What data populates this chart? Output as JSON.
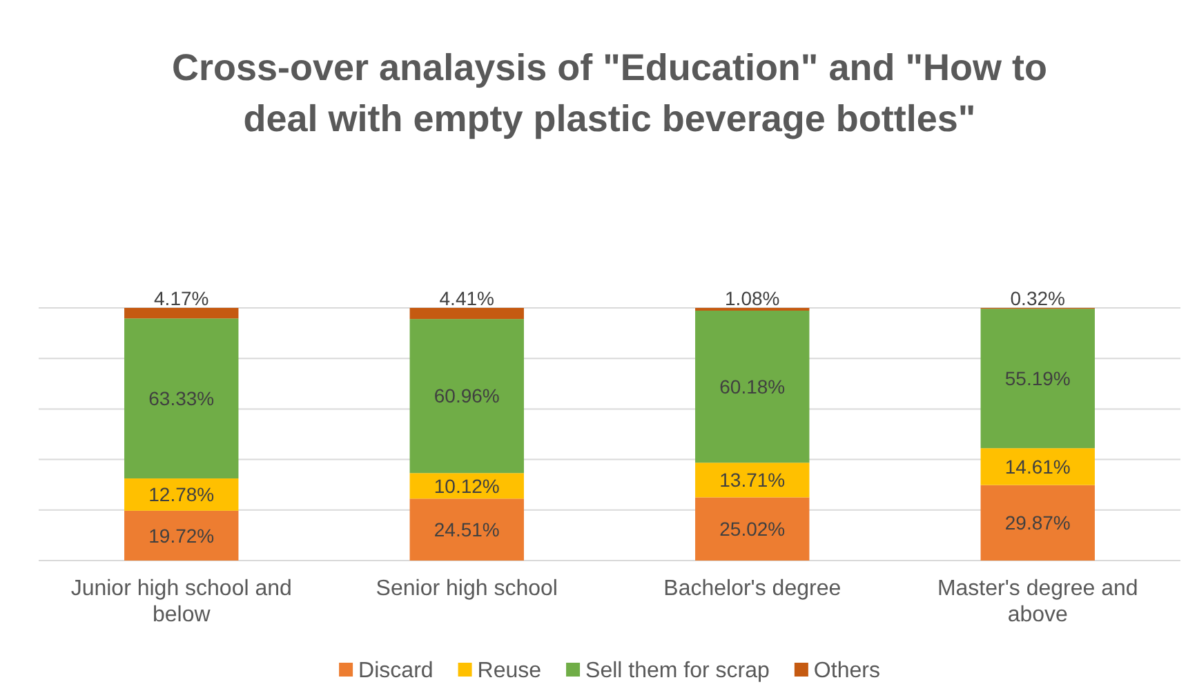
{
  "chart_data": {
    "type": "bar",
    "title": "Cross-over analaysis of \"Education\" and \"How to deal with empty plastic beverage bottles\"",
    "categories": [
      "Junior high school and below",
      "Senior high school",
      "Bachelor's degree",
      "Master's degree and above"
    ],
    "stacked": true,
    "ylim": [
      0,
      100
    ],
    "yticks": [
      {
        "value": 0,
        "label": null
      },
      {
        "value": 20,
        "label": null
      },
      {
        "value": 40,
        "label": null
      },
      {
        "value": 60,
        "label": null
      },
      {
        "value": 80,
        "label": null
      },
      {
        "value": 100,
        "label": null
      }
    ],
    "tick_labels": "x",
    "grid": "y",
    "legend": "bottom",
    "series": [
      {
        "name": "Discard",
        "color": "#ed7d31",
        "values": [
          19.72,
          24.51,
          25.02,
          29.87
        ],
        "value_labels": [
          "19.72%",
          "24.51%",
          "25.02%",
          "29.87%"
        ]
      },
      {
        "name": "Reuse",
        "color": "#ffc000",
        "values": [
          12.78,
          10.12,
          13.71,
          14.61
        ],
        "value_labels": [
          "12.78%",
          "10.12%",
          "13.71%",
          "14.61%"
        ]
      },
      {
        "name": "Sell them for scrap",
        "color": "#70ad47",
        "values": [
          63.33,
          60.96,
          60.18,
          55.19
        ],
        "value_labels": [
          "63.33%",
          "60.96%",
          "60.18%",
          "55.19%"
        ]
      },
      {
        "name": "Others",
        "color": "#c55a11",
        "values": [
          4.17,
          4.41,
          1.08,
          0.32
        ],
        "value_labels": [
          "4.17%",
          "4.41%",
          "1.08%",
          "0.32%"
        ]
      }
    ]
  }
}
